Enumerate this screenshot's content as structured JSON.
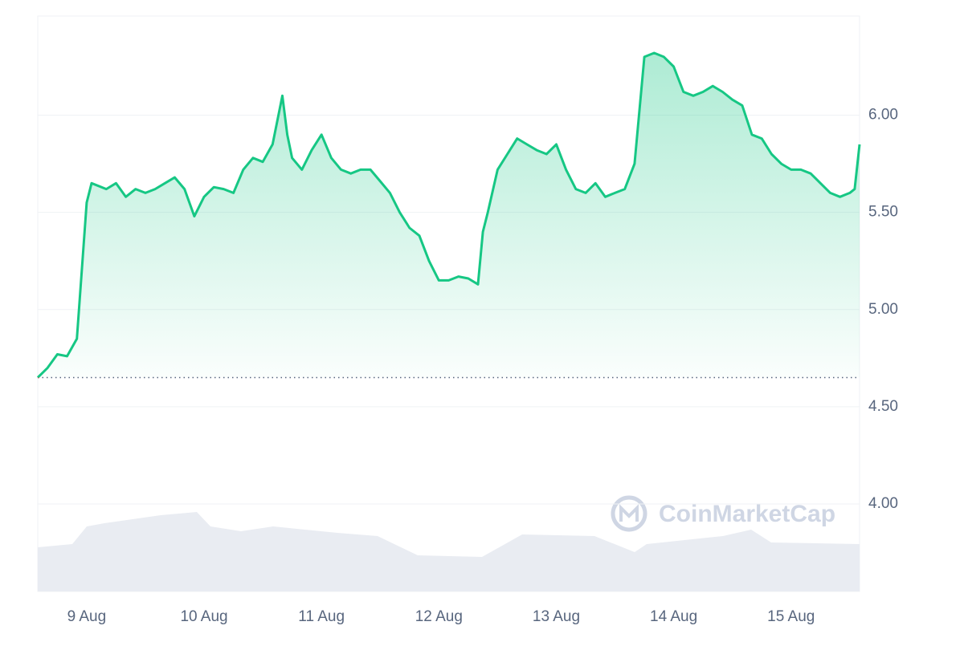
{
  "chart_data": {
    "type": "line",
    "watermark": "CoinMarketCap",
    "x": [
      0,
      2,
      4,
      6,
      8,
      9,
      10,
      11,
      14,
      16,
      18,
      20,
      22,
      24,
      26,
      28,
      30,
      32,
      34,
      36,
      38,
      40,
      42,
      44,
      46,
      48,
      50,
      51,
      52,
      54,
      56,
      58,
      60,
      62,
      64,
      66,
      68,
      70,
      72,
      74,
      76,
      78,
      80,
      82,
      84,
      86,
      88,
      90,
      91,
      92,
      94,
      96,
      98,
      100,
      102,
      104,
      106,
      108,
      110,
      112,
      114,
      116,
      118,
      120,
      122,
      124,
      126,
      128,
      130,
      132,
      134,
      136,
      138,
      140,
      142,
      144,
      146,
      148,
      150,
      152,
      154,
      156,
      158,
      160,
      162,
      164,
      166,
      167,
      168
    ],
    "series": [
      {
        "color": "#16c784",
        "down_color": "#ea3943",
        "values": [
          4.65,
          4.7,
          4.77,
          4.76,
          4.85,
          5.2,
          5.55,
          5.65,
          5.62,
          5.65,
          5.58,
          5.62,
          5.6,
          5.62,
          5.65,
          5.68,
          5.62,
          5.48,
          5.58,
          5.63,
          5.62,
          5.6,
          5.72,
          5.78,
          5.76,
          5.85,
          6.1,
          5.9,
          5.78,
          5.72,
          5.82,
          5.9,
          5.78,
          5.72,
          5.7,
          5.72,
          5.72,
          5.66,
          5.6,
          5.5,
          5.42,
          5.38,
          5.25,
          5.15,
          5.15,
          5.17,
          5.16,
          5.13,
          5.4,
          5.5,
          5.72,
          5.8,
          5.88,
          5.85,
          5.82,
          5.8,
          5.85,
          5.72,
          5.62,
          5.6,
          5.65,
          5.58,
          5.6,
          5.62,
          5.75,
          6.3,
          6.32,
          6.3,
          6.25,
          6.12,
          6.1,
          6.12,
          6.15,
          6.12,
          6.08,
          6.05,
          5.9,
          5.88,
          5.8,
          5.75,
          5.72,
          5.72,
          5.7,
          5.65,
          5.6,
          5.58,
          5.6,
          5.62,
          5.85
        ]
      }
    ],
    "baseline": 4.65,
    "xlim": [
      0,
      168
    ],
    "xticks": [
      {
        "value": 10,
        "label": "9 Aug"
      },
      {
        "value": 34,
        "label": "10 Aug"
      },
      {
        "value": 58,
        "label": "11 Aug"
      },
      {
        "value": 82,
        "label": "12 Aug"
      },
      {
        "value": 106,
        "label": "13 Aug"
      },
      {
        "value": 130,
        "label": "14 Aug"
      },
      {
        "value": 154,
        "label": "15 Aug"
      }
    ],
    "ylim": [
      3.55,
      6.51
    ],
    "yticks": [
      {
        "value": 4,
        "label": "4.00"
      },
      {
        "value": 4.5,
        "label": "4.50"
      },
      {
        "value": 5,
        "label": "5.00"
      },
      {
        "value": 5.5,
        "label": "5.50"
      },
      {
        "value": 6,
        "label": "6.00"
      }
    ],
    "grid": true
  }
}
